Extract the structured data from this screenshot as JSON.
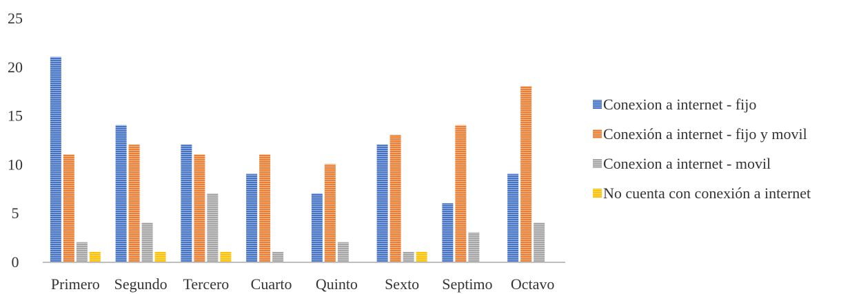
{
  "chart_data": {
    "type": "bar",
    "title": "",
    "xlabel": "",
    "ylabel": "",
    "ylim": [
      0,
      25
    ],
    "yticks": [
      0,
      5,
      10,
      15,
      20,
      25
    ],
    "grid": false,
    "legend_position": "right",
    "categories": [
      "Primero",
      "Segundo",
      "Tercero",
      "Cuarto",
      "Quinto",
      "Sexto",
      "Septimo",
      "Octavo"
    ],
    "series": [
      {
        "name": "Conexion a internet - fijo",
        "color": "#4472C4",
        "values": [
          21,
          14,
          12,
          9,
          7,
          12,
          6,
          9
        ]
      },
      {
        "name": "Conexión a internet - fijo y movil",
        "color": "#ED7D31",
        "values": [
          11,
          12,
          11,
          11,
          10,
          13,
          14,
          18
        ]
      },
      {
        "name": "Conexion a internet - movil",
        "color": "#A5A5A5",
        "values": [
          2,
          4,
          7,
          1,
          2,
          1,
          3,
          4
        ]
      },
      {
        "name": "No cuenta con conexión a internet",
        "color": "#FFC000",
        "values": [
          1,
          1,
          1,
          0,
          0,
          1,
          0,
          0
        ]
      }
    ]
  }
}
